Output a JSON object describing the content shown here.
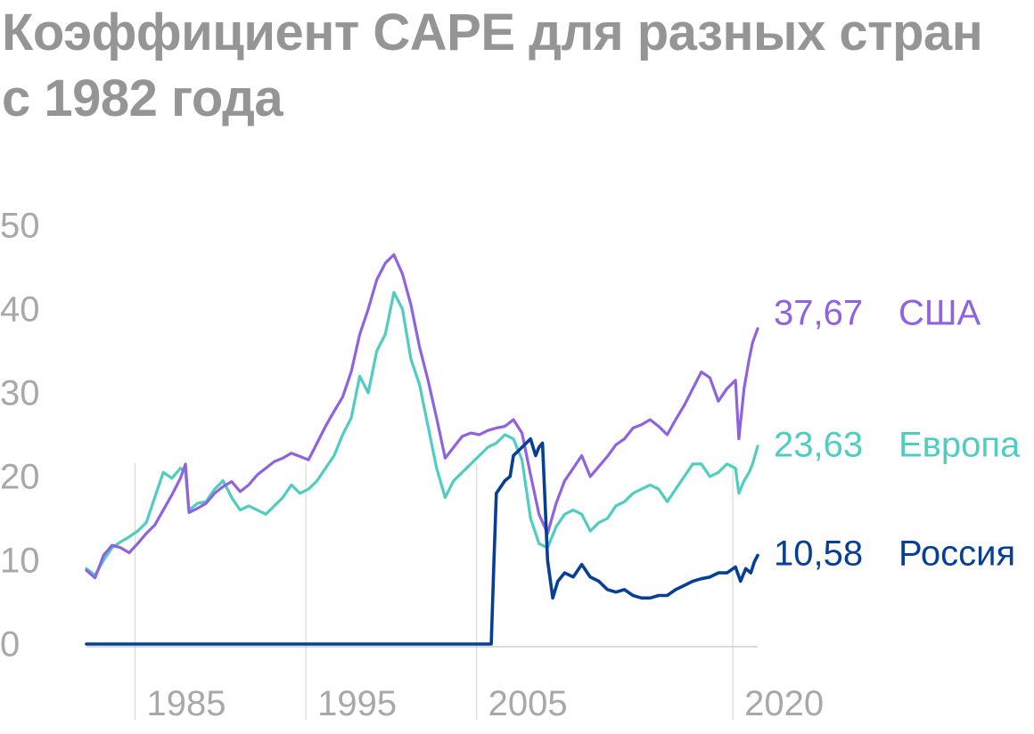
{
  "title": "Коэффициент CAPE для разных стран с 1982 года",
  "colors": {
    "usa": "#8f63e0",
    "europe": "#4fcdc1",
    "russia": "#063f94",
    "grid": "#d9d9d9",
    "axis": "#c4c4c4",
    "tick_text": "#a8a8a8",
    "title_text": "#959595"
  },
  "chart_data": {
    "type": "line",
    "title": "Коэффициент CAPE для разных стран с 1982 года",
    "xlabel": "",
    "ylabel": "",
    "xlim": [
      1982.0,
      2021.3
    ],
    "ylim": [
      0,
      50
    ],
    "y_ticks": [
      0,
      10,
      20,
      30,
      40,
      50
    ],
    "x_ticks": [
      1985,
      1995,
      2005,
      2020
    ],
    "x_tick_labels": [
      "1985",
      "1995",
      "2005",
      "2020"
    ],
    "grid": "vertical lines at x ticks",
    "legend": "end-of-line labels on the right",
    "series": [
      {
        "key": "usa",
        "name": "США",
        "end_label": "37,67",
        "color": "#8f63e0",
        "points": [
          [
            1982.0,
            8.8
          ],
          [
            1982.5,
            7.9
          ],
          [
            1983.0,
            10.6
          ],
          [
            1983.5,
            11.8
          ],
          [
            1984.0,
            11.5
          ],
          [
            1984.5,
            10.9
          ],
          [
            1985.0,
            12.0
          ],
          [
            1985.5,
            13.2
          ],
          [
            1986.0,
            14.2
          ],
          [
            1986.5,
            16.0
          ],
          [
            1987.0,
            17.8
          ],
          [
            1987.5,
            19.8
          ],
          [
            1987.8,
            21.5
          ],
          [
            1988.0,
            15.7
          ],
          [
            1988.5,
            16.2
          ],
          [
            1989.0,
            16.8
          ],
          [
            1989.5,
            18.0
          ],
          [
            1990.0,
            18.8
          ],
          [
            1990.5,
            19.4
          ],
          [
            1991.0,
            18.2
          ],
          [
            1991.5,
            19.0
          ],
          [
            1992.0,
            20.2
          ],
          [
            1992.5,
            21.0
          ],
          [
            1993.0,
            21.8
          ],
          [
            1993.5,
            22.2
          ],
          [
            1994.0,
            22.8
          ],
          [
            1994.5,
            22.4
          ],
          [
            1995.0,
            22.0
          ],
          [
            1995.5,
            24.0
          ],
          [
            1996.0,
            26.0
          ],
          [
            1996.5,
            27.8
          ],
          [
            1997.0,
            29.5
          ],
          [
            1997.5,
            32.5
          ],
          [
            1998.0,
            37.0
          ],
          [
            1998.5,
            40.0
          ],
          [
            1999.0,
            43.5
          ],
          [
            1999.5,
            45.5
          ],
          [
            2000.0,
            46.5
          ],
          [
            2000.5,
            44.2
          ],
          [
            2001.0,
            40.5
          ],
          [
            2001.5,
            35.5
          ],
          [
            2002.0,
            31.5
          ],
          [
            2002.5,
            27.0
          ],
          [
            2003.0,
            22.2
          ],
          [
            2003.5,
            23.5
          ],
          [
            2004.0,
            24.8
          ],
          [
            2004.5,
            25.2
          ],
          [
            2005.0,
            25.0
          ],
          [
            2005.5,
            25.5
          ],
          [
            2006.0,
            25.8
          ],
          [
            2006.5,
            26.0
          ],
          [
            2007.0,
            26.8
          ],
          [
            2007.5,
            25.2
          ],
          [
            2008.0,
            20.2
          ],
          [
            2008.5,
            15.5
          ],
          [
            2009.0,
            13.2
          ],
          [
            2009.5,
            16.8
          ],
          [
            2010.0,
            19.5
          ],
          [
            2010.5,
            21.0
          ],
          [
            2011.0,
            22.5
          ],
          [
            2011.5,
            20.0
          ],
          [
            2012.0,
            21.2
          ],
          [
            2012.5,
            22.4
          ],
          [
            2013.0,
            23.8
          ],
          [
            2013.5,
            24.5
          ],
          [
            2014.0,
            25.8
          ],
          [
            2014.5,
            26.2
          ],
          [
            2015.0,
            26.8
          ],
          [
            2015.5,
            26.0
          ],
          [
            2016.0,
            25.0
          ],
          [
            2016.5,
            26.8
          ],
          [
            2017.0,
            28.5
          ],
          [
            2017.5,
            30.5
          ],
          [
            2018.0,
            32.5
          ],
          [
            2018.5,
            31.8
          ],
          [
            2019.0,
            29.0
          ],
          [
            2019.5,
            30.5
          ],
          [
            2020.0,
            31.5
          ],
          [
            2020.2,
            24.5
          ],
          [
            2020.5,
            30.5
          ],
          [
            2020.8,
            34.0
          ],
          [
            2021.0,
            36.0
          ],
          [
            2021.3,
            37.67
          ]
        ]
      },
      {
        "key": "europe",
        "name": "Европа",
        "end_label": "23,63",
        "color": "#4fcdc1",
        "points": [
          [
            1982.0,
            9.0
          ],
          [
            1982.5,
            8.2
          ],
          [
            1983.0,
            10.0
          ],
          [
            1983.5,
            11.5
          ],
          [
            1984.0,
            12.2
          ],
          [
            1984.5,
            12.8
          ],
          [
            1985.0,
            13.5
          ],
          [
            1985.5,
            14.5
          ],
          [
            1986.0,
            17.5
          ],
          [
            1986.5,
            20.5
          ],
          [
            1987.0,
            19.8
          ],
          [
            1987.5,
            21.0
          ],
          [
            1987.8,
            20.5
          ],
          [
            1988.0,
            16.0
          ],
          [
            1988.5,
            16.8
          ],
          [
            1989.0,
            17.0
          ],
          [
            1989.5,
            18.5
          ],
          [
            1990.0,
            19.5
          ],
          [
            1990.5,
            17.5
          ],
          [
            1991.0,
            16.0
          ],
          [
            1991.5,
            16.5
          ],
          [
            1992.0,
            16.0
          ],
          [
            1992.5,
            15.5
          ],
          [
            1993.0,
            16.5
          ],
          [
            1993.5,
            17.5
          ],
          [
            1994.0,
            19.0
          ],
          [
            1994.5,
            18.0
          ],
          [
            1995.0,
            18.5
          ],
          [
            1995.5,
            19.5
          ],
          [
            1996.0,
            21.0
          ],
          [
            1996.5,
            22.5
          ],
          [
            1997.0,
            25.0
          ],
          [
            1997.5,
            27.0
          ],
          [
            1998.0,
            32.0
          ],
          [
            1998.5,
            30.0
          ],
          [
            1999.0,
            35.0
          ],
          [
            1999.5,
            37.0
          ],
          [
            2000.0,
            42.0
          ],
          [
            2000.5,
            40.0
          ],
          [
            2001.0,
            34.0
          ],
          [
            2001.5,
            31.0
          ],
          [
            2002.0,
            26.0
          ],
          [
            2002.5,
            21.0
          ],
          [
            2003.0,
            17.5
          ],
          [
            2003.5,
            19.5
          ],
          [
            2004.0,
            20.5
          ],
          [
            2004.5,
            21.5
          ],
          [
            2005.0,
            22.5
          ],
          [
            2005.5,
            23.5
          ],
          [
            2006.0,
            24.0
          ],
          [
            2006.5,
            25.0
          ],
          [
            2007.0,
            24.5
          ],
          [
            2007.5,
            22.0
          ],
          [
            2008.0,
            15.0
          ],
          [
            2008.5,
            12.0
          ],
          [
            2009.0,
            11.5
          ],
          [
            2009.5,
            14.0
          ],
          [
            2010.0,
            15.5
          ],
          [
            2010.5,
            16.0
          ],
          [
            2011.0,
            15.5
          ],
          [
            2011.5,
            13.5
          ],
          [
            2012.0,
            14.5
          ],
          [
            2012.5,
            15.0
          ],
          [
            2013.0,
            16.5
          ],
          [
            2013.5,
            17.0
          ],
          [
            2014.0,
            18.0
          ],
          [
            2014.5,
            18.5
          ],
          [
            2015.0,
            19.0
          ],
          [
            2015.5,
            18.5
          ],
          [
            2016.0,
            17.0
          ],
          [
            2016.5,
            18.5
          ],
          [
            2017.0,
            20.0
          ],
          [
            2017.5,
            21.5
          ],
          [
            2018.0,
            21.5
          ],
          [
            2018.5,
            20.0
          ],
          [
            2019.0,
            20.5
          ],
          [
            2019.5,
            21.5
          ],
          [
            2020.0,
            21.0
          ],
          [
            2020.2,
            18.0
          ],
          [
            2020.5,
            19.5
          ],
          [
            2020.8,
            20.5
          ],
          [
            2021.0,
            21.5
          ],
          [
            2021.3,
            23.63
          ]
        ]
      },
      {
        "key": "russia",
        "name": "Россия",
        "end_label": "10,58",
        "color": "#063f94",
        "points": [
          [
            1982.0,
            0.0
          ],
          [
            2005.7,
            0.0
          ],
          [
            2005.85,
            9.5
          ],
          [
            2006.0,
            18.0
          ],
          [
            2006.5,
            19.5
          ],
          [
            2006.8,
            20.0
          ],
          [
            2007.0,
            22.5
          ],
          [
            2007.5,
            23.5
          ],
          [
            2008.0,
            24.5
          ],
          [
            2008.3,
            22.5
          ],
          [
            2008.5,
            23.5
          ],
          [
            2008.7,
            24.0
          ],
          [
            2009.0,
            10.0
          ],
          [
            2009.3,
            5.5
          ],
          [
            2009.6,
            7.5
          ],
          [
            2010.0,
            8.5
          ],
          [
            2010.5,
            8.0
          ],
          [
            2011.0,
            9.5
          ],
          [
            2011.5,
            8.0
          ],
          [
            2012.0,
            7.5
          ],
          [
            2012.5,
            6.5
          ],
          [
            2013.0,
            6.2
          ],
          [
            2013.5,
            6.5
          ],
          [
            2014.0,
            5.8
          ],
          [
            2014.5,
            5.5
          ],
          [
            2015.0,
            5.5
          ],
          [
            2015.5,
            5.8
          ],
          [
            2016.0,
            5.8
          ],
          [
            2016.5,
            6.5
          ],
          [
            2017.0,
            7.0
          ],
          [
            2017.5,
            7.5
          ],
          [
            2018.0,
            7.8
          ],
          [
            2018.5,
            8.0
          ],
          [
            2019.0,
            8.5
          ],
          [
            2019.5,
            8.5
          ],
          [
            2020.0,
            9.2
          ],
          [
            2020.3,
            7.5
          ],
          [
            2020.6,
            9.0
          ],
          [
            2020.9,
            8.5
          ],
          [
            2021.1,
            9.8
          ],
          [
            2021.3,
            10.58
          ]
        ]
      }
    ]
  }
}
